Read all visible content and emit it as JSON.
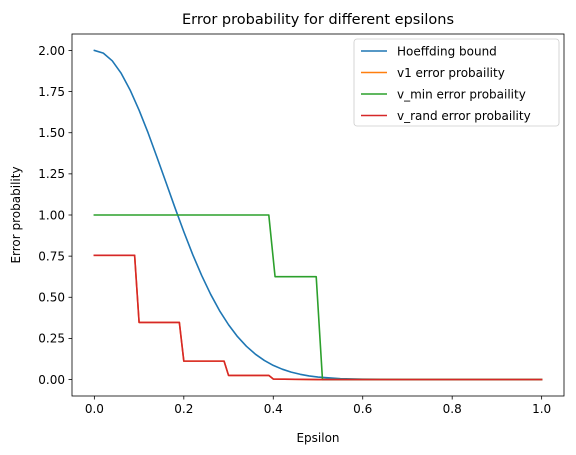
{
  "chart_data": {
    "type": "line",
    "title": "Error probability for different epsilons",
    "xlabel": "Epsilon",
    "ylabel": "Error probability",
    "xlim": [
      -0.05,
      1.05
    ],
    "ylim": [
      -0.1,
      2.1
    ],
    "xticks": [
      "0.0",
      "0.2",
      "0.4",
      "0.6",
      "0.8",
      "1.0"
    ],
    "yticks": [
      "0.00",
      "0.25",
      "0.50",
      "0.75",
      "1.00",
      "1.25",
      "1.50",
      "1.75",
      "2.00"
    ],
    "grid": false,
    "legend_position": "top-right",
    "series": [
      {
        "name": "Hoeffding bound",
        "color": "#1f77b4",
        "x": [
          0.0,
          0.02,
          0.04,
          0.06,
          0.08,
          0.1,
          0.12,
          0.14,
          0.16,
          0.18,
          0.2,
          0.22,
          0.24,
          0.26,
          0.28,
          0.3,
          0.32,
          0.34,
          0.36,
          0.38,
          0.4,
          0.42,
          0.44,
          0.46,
          0.48,
          0.5,
          0.55,
          0.6,
          0.7,
          0.8,
          0.9,
          1.0
        ],
        "y": [
          2.0,
          1.984,
          1.937,
          1.861,
          1.759,
          1.637,
          1.5,
          1.351,
          1.199,
          1.046,
          0.898,
          0.759,
          0.632,
          0.518,
          0.418,
          0.333,
          0.261,
          0.202,
          0.154,
          0.116,
          0.086,
          0.063,
          0.045,
          0.032,
          0.022,
          0.015,
          0.005,
          0.002,
          0.0,
          0.0,
          0.0,
          0.0
        ]
      },
      {
        "name": "v1 error probaility",
        "color": "#ff7f0e",
        "x": [
          0.0,
          0.09,
          0.1,
          0.19,
          0.2,
          0.29,
          0.3,
          0.39,
          0.4,
          0.5,
          0.6,
          0.8,
          1.0
        ],
        "y": [
          0.755,
          0.755,
          0.347,
          0.347,
          0.112,
          0.112,
          0.025,
          0.025,
          0.003,
          0.0,
          0.0,
          0.0,
          0.0
        ]
      },
      {
        "name": "v_min error probaility",
        "color": "#2ca02c",
        "x": [
          0.0,
          0.39,
          0.404,
          0.496,
          0.51,
          0.6,
          0.8,
          1.0
        ],
        "y": [
          1.0,
          1.0,
          0.625,
          0.625,
          0.0,
          0.0,
          0.0,
          0.0
        ]
      },
      {
        "name": "v_rand error probaility",
        "color": "#d62728",
        "x": [
          0.0,
          0.09,
          0.1,
          0.19,
          0.2,
          0.29,
          0.3,
          0.39,
          0.4,
          0.5,
          0.6,
          0.8,
          1.0
        ],
        "y": [
          0.755,
          0.755,
          0.347,
          0.347,
          0.112,
          0.112,
          0.025,
          0.025,
          0.003,
          0.0,
          0.0,
          0.0,
          0.0
        ]
      }
    ]
  }
}
